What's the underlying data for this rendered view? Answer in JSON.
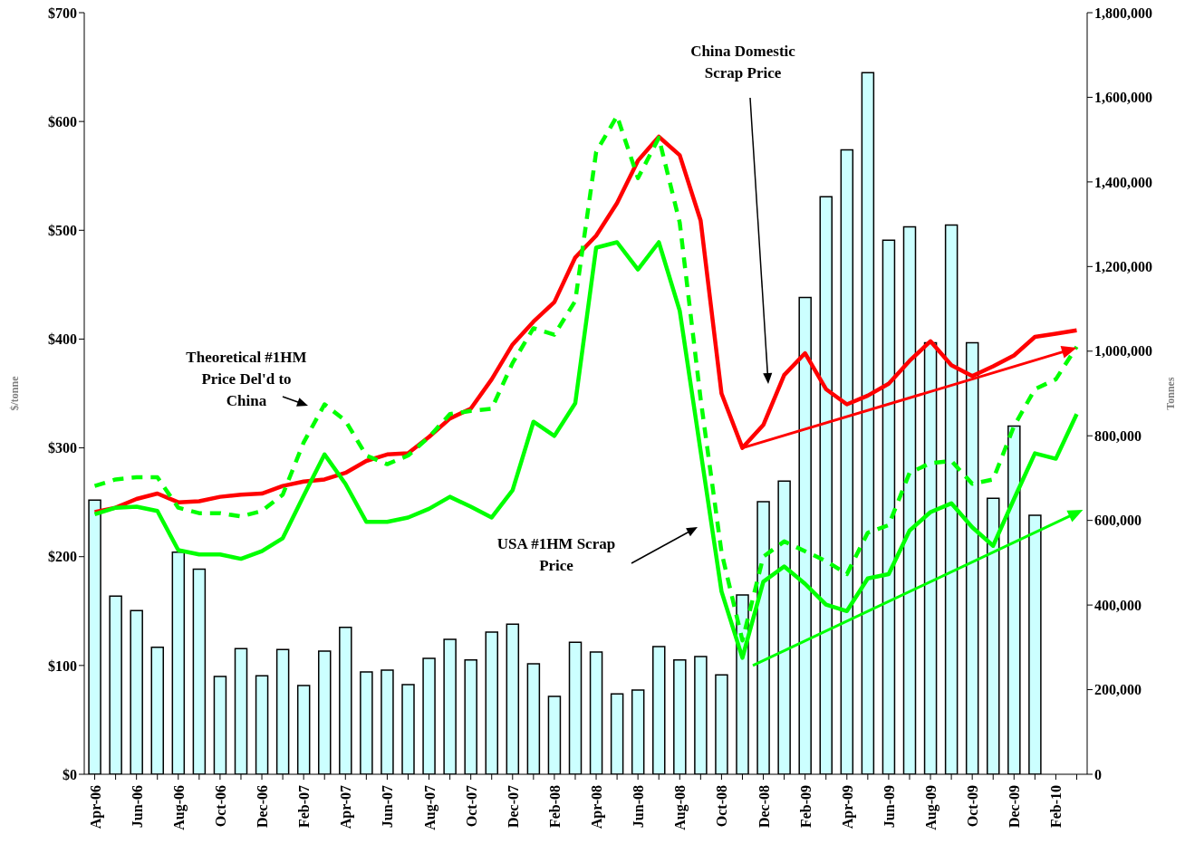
{
  "chart_data": {
    "type": "line",
    "ylabel": "$/tonne",
    "y2label": "Tonnes",
    "categories": [
      "Apr-06",
      null,
      "Jun-06",
      null,
      "Aug-06",
      null,
      "Oct-06",
      null,
      "Dec-06",
      null,
      "Feb-07",
      null,
      "Apr-07",
      null,
      "Jun-07",
      null,
      "Aug-07",
      null,
      "Oct-07",
      null,
      "Dec-07",
      null,
      "Feb-08",
      null,
      "Apr-08",
      null,
      "Jun-08",
      null,
      "Aug-08",
      null,
      "Oct-08",
      null,
      "Dec-08",
      null,
      "Feb-09",
      null,
      "Apr-09",
      null,
      "Jun-09",
      null,
      "Aug-09",
      null,
      "Oct-09",
      null,
      "Dec-09",
      null,
      "Feb-10",
      null
    ],
    "series": [
      {
        "type": "bar",
        "axis": "y2",
        "color": "#ccffff",
        "values": [
          648000,
          421000,
          387000,
          300000,
          525000,
          485000,
          231000,
          297000,
          233000,
          295000,
          210000,
          291000,
          347000,
          242000,
          246000,
          212000,
          274000,
          319000,
          270000,
          336000,
          355000,
          261000,
          184000,
          312000,
          289000,
          190000,
          199000,
          302000,
          270000,
          278000,
          235000,
          424000,
          644000,
          693000,
          1127000,
          1365000,
          1476000,
          1658000,
          1262000,
          1294000,
          1020000,
          1298000,
          1020000,
          652000,
          823000,
          612000,
          null,
          null
        ]
      },
      {
        "name": "China Domestic\nScrap Price",
        "color": "#ff0000",
        "line_style": "solid",
        "values": [
          241,
          245,
          253,
          258,
          250,
          251,
          255,
          257,
          258,
          265,
          269,
          271,
          277,
          288,
          294,
          295,
          310,
          327,
          336,
          363,
          395,
          416,
          434,
          475,
          495,
          525,
          564,
          586,
          569,
          509,
          350,
          300,
          321,
          367,
          387,
          354,
          340,
          348,
          359,
          380,
          398,
          376,
          366,
          375,
          385,
          402,
          405,
          408
        ]
      },
      {
        "name": "USA #1HM Scrap\nPrice",
        "color": "#00ff00",
        "line_style": "solid",
        "values": [
          239,
          245,
          246,
          242,
          206,
          202,
          202,
          198,
          205,
          217,
          256,
          294,
          267,
          232,
          232,
          236,
          244,
          255,
          246,
          236,
          261,
          324,
          311,
          341,
          484,
          489,
          464,
          489,
          426,
          297,
          168,
          107,
          177,
          191,
          175,
          156,
          150,
          180,
          184,
          224,
          241,
          249,
          227,
          210,
          253,
          295,
          290,
          331
        ]
      },
      {
        "name": "Theoretical #1HM\nPrice Del'd to\nChina",
        "color": "#00ff00",
        "line_style": "dashed",
        "values": [
          265,
          271,
          273,
          273,
          245,
          240,
          240,
          237,
          242,
          257,
          305,
          340,
          325,
          293,
          285,
          293,
          310,
          331,
          334,
          336,
          378,
          410,
          404,
          435,
          572,
          605,
          548,
          585,
          507,
          345,
          204,
          123,
          200,
          214,
          205,
          196,
          184,
          222,
          229,
          277,
          286,
          288,
          267,
          271,
          320,
          354,
          363,
          393
        ]
      }
    ],
    "ylim": [
      0,
      700
    ],
    "yticks": [
      {
        "value": 0,
        "label": "$0"
      },
      {
        "value": 100,
        "label": "$100"
      },
      {
        "value": 200,
        "label": "$200"
      },
      {
        "value": 300,
        "label": "$300"
      },
      {
        "value": 400,
        "label": "$400"
      },
      {
        "value": 500,
        "label": "$500"
      },
      {
        "value": 600,
        "label": "$600"
      },
      {
        "value": 700,
        "label": "$700"
      }
    ],
    "y2lim": [
      0,
      1800000
    ],
    "y2ticks": [
      {
        "value": 0,
        "label": "0"
      },
      {
        "value": 200000,
        "label": "200,000"
      },
      {
        "value": 400000,
        "label": "400,000"
      },
      {
        "value": 600000,
        "label": "600,000"
      },
      {
        "value": 800000,
        "label": "800,000"
      },
      {
        "value": 1000000,
        "label": "1,000,000"
      },
      {
        "value": 1200000,
        "label": "1,200,000"
      },
      {
        "value": 1400000,
        "label": "1,400,000"
      },
      {
        "value": 1600000,
        "label": "1,600,000"
      },
      {
        "value": 1800000,
        "label": "1,800,000"
      }
    ],
    "grid": false,
    "legend": false,
    "marker": "none"
  }
}
